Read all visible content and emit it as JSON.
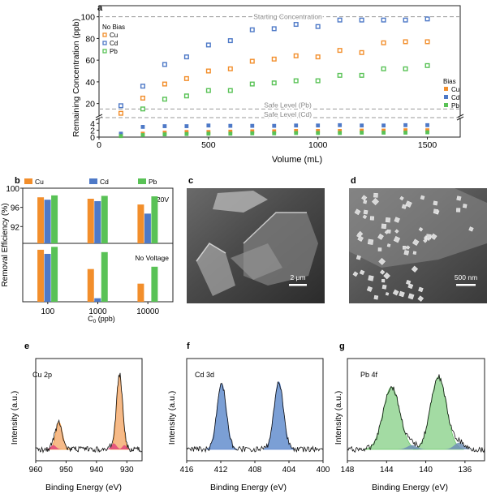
{
  "colors": {
    "cu": "#f28e2b",
    "cd": "#4e79c7",
    "pb": "#59c256",
    "cu_fill": "#f6b37c",
    "cd_fill": "#6d95d1",
    "pb_fill": "#9ad89a",
    "pink": "#e0457b",
    "dashed": "#9a9a9a",
    "axis": "#222222"
  },
  "panels": {
    "a": {
      "letter": "a"
    },
    "b": {
      "letter": "b"
    },
    "c": {
      "letter": "c",
      "scale_label": "2 μm"
    },
    "d": {
      "letter": "d",
      "scale_label": "500 nm"
    },
    "e": {
      "letter": "e",
      "label": "Cu 2p"
    },
    "f": {
      "letter": "f",
      "label": "Cd 3d"
    },
    "g": {
      "letter": "g",
      "label": "Pb 4f"
    }
  },
  "chart_data": [
    {
      "panel": "a",
      "type": "scatter",
      "xlabel": "Volume (mL)",
      "ylabel": "Remaining Concentration (ppb)",
      "xlim": [
        0,
        1650
      ],
      "ylim_upper": [
        10,
        105
      ],
      "ylim_lower": [
        0,
        5
      ],
      "xticks": [
        0,
        500,
        1000,
        1500
      ],
      "yticks_upper": [
        20,
        40,
        60,
        80,
        100
      ],
      "yticks_lower": [
        0,
        2,
        4
      ],
      "x": [
        100,
        200,
        300,
        400,
        500,
        600,
        700,
        800,
        900,
        1000,
        1100,
        1200,
        1300,
        1400,
        1500
      ],
      "legend_no_bias": {
        "title": "No Bias",
        "items": [
          "Cu",
          "Cd",
          "Pb"
        ]
      },
      "legend_bias": {
        "title": "Bias",
        "items": [
          "Cu",
          "Cd",
          "Pb"
        ]
      },
      "series_no_bias": [
        {
          "name": "Cu",
          "values": [
            11,
            25,
            38,
            43,
            50,
            52,
            59,
            61,
            64,
            63,
            69,
            67,
            76,
            77,
            77
          ]
        },
        {
          "name": "Cd",
          "values": [
            18,
            36,
            56,
            63,
            74,
            78,
            88,
            89,
            93,
            91,
            97,
            97,
            97,
            97,
            98
          ]
        },
        {
          "name": "Pb",
          "values": null
        }
      ],
      "series_pb_no_bias": [
        {
          "x": 200,
          "y": 15
        },
        {
          "x": 300,
          "y": 24
        },
        {
          "x": 400,
          "y": 27
        },
        {
          "x": 500,
          "y": 32
        },
        {
          "x": 600,
          "y": 32
        },
        {
          "x": 700,
          "y": 38
        },
        {
          "x": 800,
          "y": 39
        },
        {
          "x": 900,
          "y": 41
        },
        {
          "x": 1000,
          "y": 41
        },
        {
          "x": 1100,
          "y": 46
        },
        {
          "x": 1200,
          "y": 46
        },
        {
          "x": 1300,
          "y": 52
        },
        {
          "x": 1400,
          "y": 52
        },
        {
          "x": 1500,
          "y": 55
        }
      ],
      "series_bias": [
        {
          "name": "Cu",
          "values": [
            0.6,
            1.0,
            1.3,
            1.5,
            1.5,
            1.6,
            1.7,
            1.7,
            1.8,
            1.8,
            1.8,
            1.9,
            1.9,
            2.0,
            2.0
          ]
        },
        {
          "name": "Cd",
          "values": [
            1.0,
            3.0,
            3.2,
            3.2,
            3.4,
            3.3,
            3.3,
            3.3,
            3.4,
            3.4,
            3.5,
            3.4,
            3.4,
            3.5,
            3.5
          ]
        },
        {
          "name": "Pb",
          "values": [
            0.3,
            0.6,
            0.8,
            0.9,
            1.0,
            1.0,
            1.1,
            1.1,
            1.2,
            1.2,
            1.2,
            1.3,
            1.3,
            1.3,
            1.4
          ]
        }
      ],
      "reference_lines": [
        {
          "label": "Starting Concentration",
          "y": 100
        },
        {
          "label": "Safe Level (Pb)",
          "y": 15
        },
        {
          "label": "Safe Level (Cd)",
          "y": 5
        }
      ]
    },
    {
      "panel": "b",
      "type": "bar",
      "xlabel": "C0 (ppb)",
      "xlabel_main": "C",
      "xlabel_sub": "0",
      "xlabel_rest": " (ppb)",
      "ylabel": "Removal Efficiency (%)",
      "categories": [
        "100",
        "1000",
        "10000"
      ],
      "legend": [
        "Cu",
        "Cd",
        "Pb"
      ],
      "upper": {
        "label": "20V",
        "ylim": [
          88.5,
          100
        ],
        "yticks": [
          92,
          96,
          100
        ],
        "series": [
          {
            "name": "Cu",
            "values": [
              98.1,
              97.8,
              96.6
            ]
          },
          {
            "name": "Cd",
            "values": [
              97.6,
              97.3,
              94.7
            ]
          },
          {
            "name": "Pb",
            "values": [
              98.5,
              98.4,
              98.3
            ]
          }
        ]
      },
      "lower": {
        "label": "No Voltage",
        "ylim": [
          0,
          100
        ],
        "series": [
          {
            "name": "Cu",
            "values": [
              89,
              56,
              31
            ]
          },
          {
            "name": "Cd",
            "values": [
              82,
              6,
              0
            ]
          },
          {
            "name": "Pb",
            "values": [
              94,
              85,
              60
            ]
          }
        ]
      }
    },
    {
      "panel": "e",
      "type": "line",
      "title": "Cu 2p",
      "xlabel": "Binding Energy (eV)",
      "ylabel": "Intensity (a.u.)",
      "xlim": [
        960,
        925
      ],
      "xticks": [
        960,
        950,
        940,
        930
      ],
      "peaks": [
        {
          "center": 952.3,
          "height": 0.32,
          "width": 1.1
        },
        {
          "center": 932.4,
          "height": 0.88,
          "width": 0.95
        }
      ],
      "minor_peaks": [
        {
          "center": 954.2,
          "height": 0.05,
          "width": 0.9
        },
        {
          "center": 934.3,
          "height": 0.07,
          "width": 0.9
        },
        {
          "center": 930.8,
          "height": 0.05,
          "width": 0.7
        }
      ]
    },
    {
      "panel": "f",
      "type": "line",
      "title": "Cd 3d",
      "xlabel": "Binding Energy (eV)",
      "ylabel": "Intensity (a.u.)",
      "xlim": [
        416,
        400
      ],
      "xticks": [
        416,
        412,
        408,
        404,
        400
      ],
      "peaks": [
        {
          "center": 411.9,
          "height": 0.78,
          "width": 0.55
        },
        {
          "center": 405.2,
          "height": 0.8,
          "width": 0.55
        }
      ],
      "minor_peaks": []
    },
    {
      "panel": "g",
      "type": "line",
      "title": "Pb 4f",
      "xlabel": "Binding Energy (eV)",
      "ylabel": "Intensity (a.u.)",
      "xlim": [
        148,
        134
      ],
      "xticks": [
        148,
        144,
        140,
        136
      ],
      "peaks": [
        {
          "center": 143.5,
          "height": 0.74,
          "width": 0.85
        },
        {
          "center": 138.7,
          "height": 0.86,
          "width": 0.8
        }
      ],
      "minor_peaks": [
        {
          "center": 141.4,
          "height": 0.05,
          "width": 0.5
        },
        {
          "center": 136.6,
          "height": 0.08,
          "width": 0.5
        }
      ]
    }
  ]
}
